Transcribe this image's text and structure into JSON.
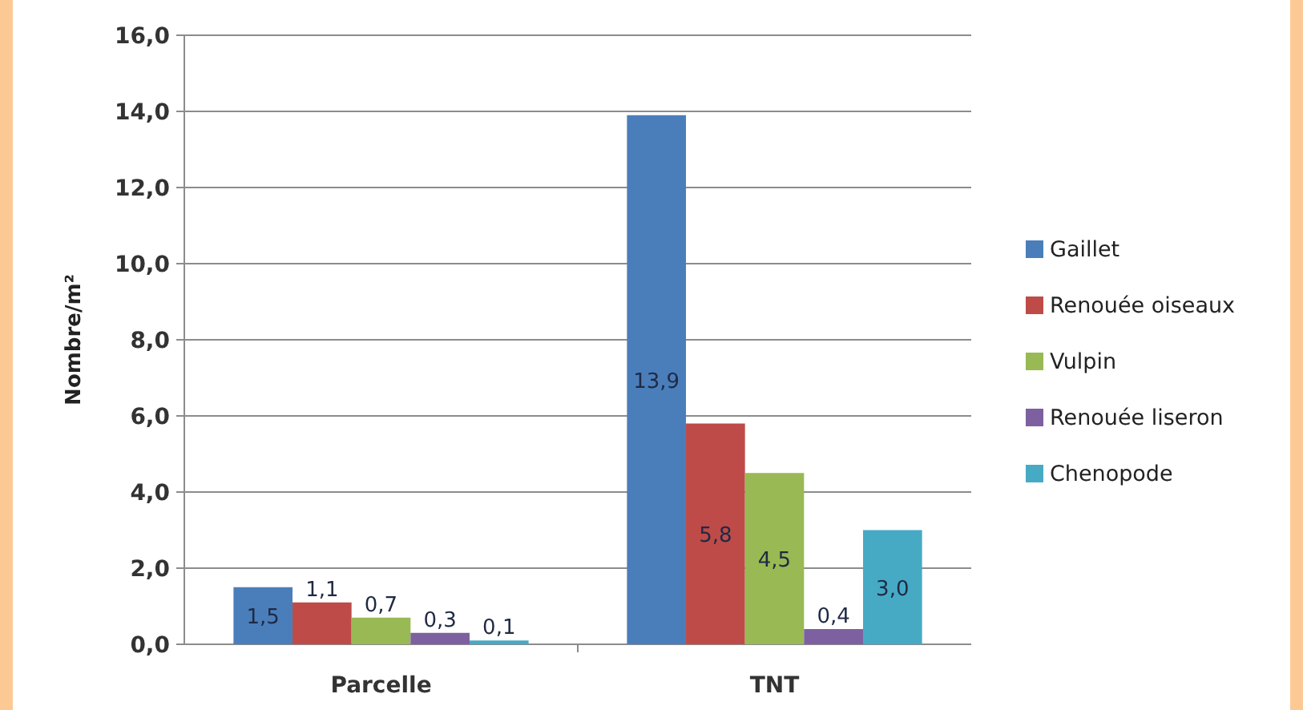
{
  "chart_data": {
    "type": "bar",
    "ylabel": "Nombre/m²",
    "categories": [
      "Parcelle",
      "TNT"
    ],
    "series": [
      {
        "name": "Gaillet",
        "color": "#4a7ebb",
        "values": [
          1.5,
          13.9
        ],
        "value_labels": [
          "1,5",
          "13,9"
        ]
      },
      {
        "name": "Renouée oiseaux",
        "color": "#be4b48",
        "values": [
          1.1,
          5.8
        ],
        "value_labels": [
          "1,1",
          "5,8"
        ]
      },
      {
        "name": "Vulpin",
        "color": "#98b954",
        "values": [
          0.7,
          4.5
        ],
        "value_labels": [
          "0,7",
          "4,5"
        ]
      },
      {
        "name": "Renouée liseron",
        "color": "#7d60a0",
        "values": [
          0.3,
          0.4
        ],
        "value_labels": [
          "0,3",
          "0,4"
        ]
      },
      {
        "name": "Chenopode",
        "color": "#46aac5",
        "values": [
          0.1,
          3.0
        ],
        "value_labels": [
          "0,1",
          "3,0"
        ]
      }
    ],
    "ylim": [
      0,
      16
    ],
    "yticks": [
      {
        "value": 0,
        "label": "0,0"
      },
      {
        "value": 2,
        "label": "2,0"
      },
      {
        "value": 4,
        "label": "4,0"
      },
      {
        "value": 6,
        "label": "6,0"
      },
      {
        "value": 8,
        "label": "8,0"
      },
      {
        "value": 10,
        "label": "10,0"
      },
      {
        "value": 12,
        "label": "12,0"
      },
      {
        "value": 14,
        "label": "14,0"
      },
      {
        "value": 16,
        "label": "16,0"
      }
    ],
    "grid": "y",
    "legend": "right"
  }
}
